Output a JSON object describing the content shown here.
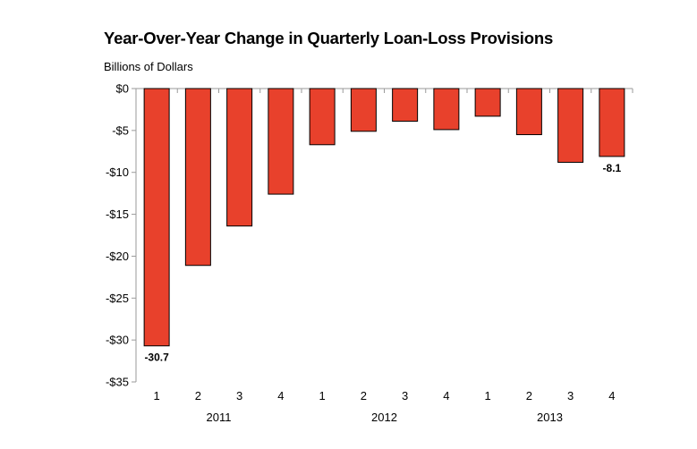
{
  "chart_data": {
    "type": "bar",
    "title": "Year-Over-Year Change in Quarterly Loan-Loss Provisions",
    "ylabel": "Billions of Dollars",
    "xlabel": "",
    "categories": [
      "1",
      "2",
      "3",
      "4",
      "1",
      "2",
      "3",
      "4",
      "1",
      "2",
      "3",
      "4"
    ],
    "groups": [
      {
        "label": "2011",
        "start": 0,
        "count": 4
      },
      {
        "label": "2012",
        "start": 4,
        "count": 4
      },
      {
        "label": "2013",
        "start": 8,
        "count": 4
      }
    ],
    "values": [
      -30.7,
      -21.1,
      -16.4,
      -12.6,
      -6.7,
      -5.1,
      -3.9,
      -4.9,
      -3.3,
      -5.5,
      -8.8,
      -8.1
    ],
    "ylim": [
      -35,
      0
    ],
    "yticks": [
      0,
      -5,
      -10,
      -15,
      -20,
      -25,
      -30,
      -35
    ],
    "ytick_labels": [
      "$0",
      "-$5",
      "-$10",
      "-$15",
      "-$20",
      "-$25",
      "-$30",
      "-$35"
    ],
    "data_labels": [
      {
        "index": 0,
        "text": "-30.7"
      },
      {
        "index": 11,
        "text": "-8.1"
      }
    ],
    "bar_color": "#e8412c",
    "bar_edge_color": "#000000",
    "grid": false,
    "legend": "none"
  }
}
